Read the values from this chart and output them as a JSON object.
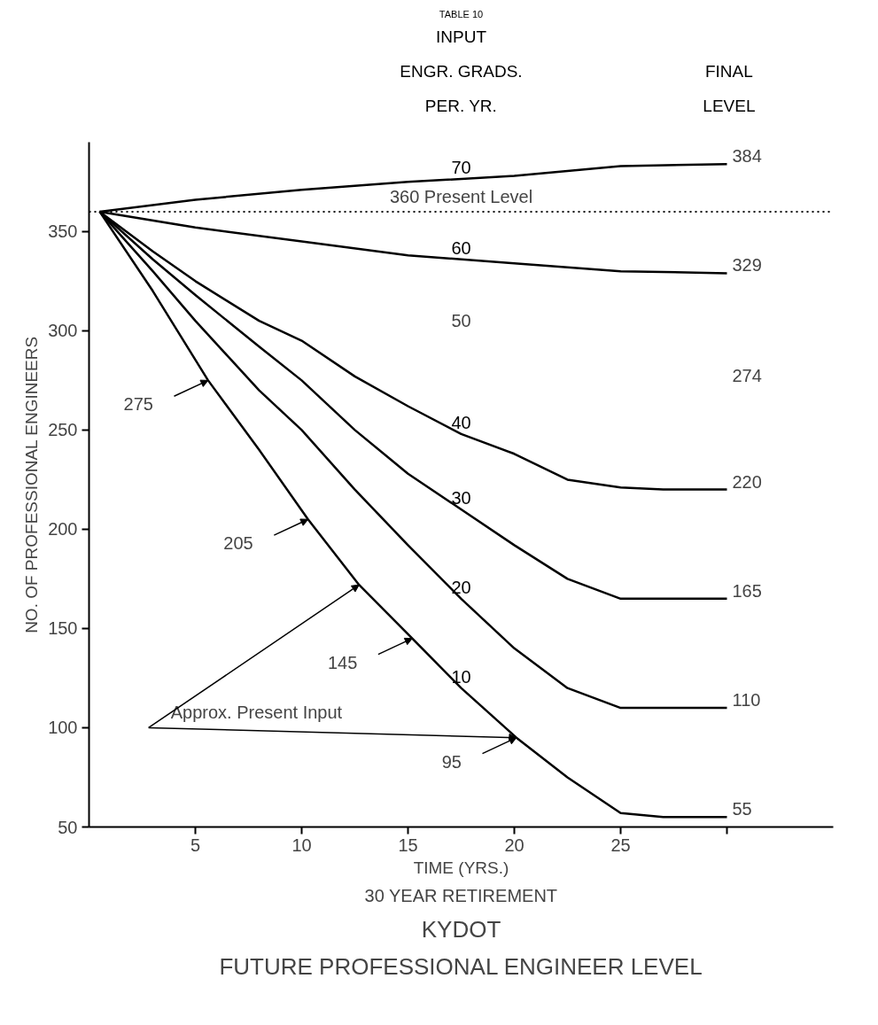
{
  "chart_data": {
    "type": "line",
    "title": "FUTURE PROFESSIONAL ENGINEER LEVEL",
    "subtitle": "KYDOT",
    "xlabel": "TIME (YRS.)",
    "ylabel": "NO. OF PROFESSIONAL ENGINEERS",
    "xlim": [
      0,
      35
    ],
    "ylim": [
      50,
      395
    ],
    "xticks": [
      5,
      10,
      15,
      20,
      25,
      {
        "value": 30,
        "label": null
      }
    ],
    "yticks": [
      50,
      100,
      150,
      200,
      250,
      300,
      350
    ],
    "grid": false,
    "line_style": "solid",
    "marker": "none",
    "series": [
      {
        "name": "70",
        "color": "#000000",
        "x": [
          0.5,
          5,
          10,
          15,
          20,
          25,
          30
        ],
        "values": [
          360,
          366,
          371,
          375,
          378,
          383,
          384
        ],
        "value_labels": [
          null,
          null,
          null,
          null,
          null,
          null,
          "384"
        ]
      },
      {
        "name": "60",
        "color": "#000000",
        "x": [
          0.5,
          5,
          10,
          15,
          20,
          25,
          30
        ],
        "values": [
          360,
          352,
          345,
          338,
          334,
          330,
          329
        ],
        "value_labels": [
          null,
          null,
          null,
          null,
          null,
          null,
          "329"
        ]
      },
      {
        "name": "40",
        "color": "#000000",
        "x": [
          0.5,
          3,
          5,
          8,
          10,
          12.5,
          15,
          17.5,
          20,
          22.5,
          25,
          27,
          30
        ],
        "values": [
          360,
          340,
          325,
          305,
          295,
          277,
          262,
          248,
          238,
          225,
          221,
          220,
          220
        ],
        "value_labels": [
          null,
          null,
          null,
          null,
          null,
          null,
          null,
          null,
          null,
          null,
          null,
          null,
          "220"
        ]
      },
      {
        "name": "30",
        "color": "#000000",
        "x": [
          0.5,
          3,
          5,
          8,
          10,
          12.5,
          15,
          17.5,
          20,
          22.5,
          25,
          27,
          30
        ],
        "values": [
          360,
          336,
          318,
          292,
          275,
          250,
          228,
          210,
          192,
          175,
          165,
          165,
          165
        ],
        "value_labels": [
          null,
          null,
          null,
          null,
          null,
          null,
          null,
          null,
          null,
          null,
          null,
          null,
          "165"
        ]
      },
      {
        "name": "20",
        "color": "#000000",
        "x": [
          0.5,
          3,
          5,
          8,
          10,
          12.5,
          15,
          17.5,
          20,
          22.5,
          25,
          27,
          30
        ],
        "values": [
          360,
          330,
          305,
          270,
          250,
          220,
          192,
          165,
          140,
          120,
          110,
          110,
          110
        ],
        "value_labels": [
          null,
          null,
          null,
          null,
          null,
          null,
          null,
          null,
          null,
          null,
          null,
          null,
          "110"
        ]
      },
      {
        "name": "10",
        "color": "#000000",
        "x": [
          0.5,
          3,
          5.6,
          8,
          10.3,
          12.7,
          15.2,
          17.5,
          20.1,
          22.5,
          25,
          27,
          30
        ],
        "values": [
          360,
          320,
          275,
          240,
          205,
          172,
          145,
          120,
          95,
          75,
          57,
          55,
          55
        ],
        "value_labels": [
          null,
          null,
          "275",
          null,
          "205",
          null,
          "145",
          null,
          "95",
          null,
          null,
          null,
          "55"
        ]
      }
    ],
    "ref_lines": [
      {
        "axis": "y",
        "value": 360,
        "label": "360 Present Level",
        "color": "#000000",
        "line_style": "dotted"
      }
    ],
    "annotations": [
      "TABLE 10",
      "INPUT",
      "ENGR. GRADS.",
      "PER. YR.",
      "FINAL",
      "LEVEL",
      "30 YEAR RETIREMENT",
      "50",
      "274",
      {
        "text": "Approx. Present Input",
        "x": 20.1,
        "y": 95
      }
    ]
  }
}
